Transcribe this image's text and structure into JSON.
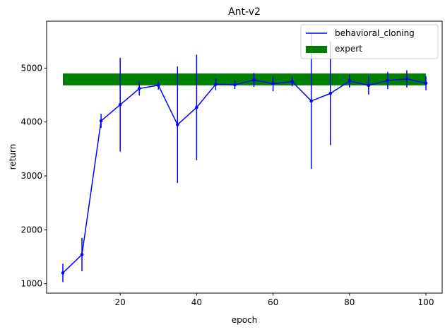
{
  "chart_data": {
    "type": "line",
    "title": "Ant-v2",
    "xlabel": "epoch",
    "ylabel": "return",
    "xlim": [
      0.75,
      104.25
    ],
    "ylim": [
      825,
      5870
    ],
    "xticks": [
      20,
      40,
      60,
      80,
      100
    ],
    "yticks": [
      1000,
      2000,
      3000,
      4000,
      5000
    ],
    "legend_position": "top-right",
    "grid": false,
    "series": [
      {
        "name": "behavioral_cloning",
        "color": "#0000ff",
        "x": [
          5,
          10,
          15,
          20,
          25,
          30,
          35,
          40,
          45,
          50,
          55,
          60,
          65,
          70,
          75,
          80,
          85,
          90,
          95,
          100
        ],
        "y": [
          1200,
          1540,
          4020,
          4320,
          4620,
          4680,
          3950,
          4270,
          4700,
          4690,
          4780,
          4710,
          4750,
          4390,
          4530,
          4760,
          4680,
          4770,
          4800,
          4720
        ],
        "yerr": [
          170,
          310,
          130,
          870,
          130,
          80,
          1080,
          980,
          110,
          80,
          130,
          140,
          90,
          1260,
          960,
          120,
          170,
          160,
          160,
          130
        ]
      }
    ],
    "expert": {
      "name": "expert",
      "color": "#008000",
      "x_range": [
        5,
        100
      ],
      "y_mean": 4790,
      "y_std": 110
    }
  }
}
